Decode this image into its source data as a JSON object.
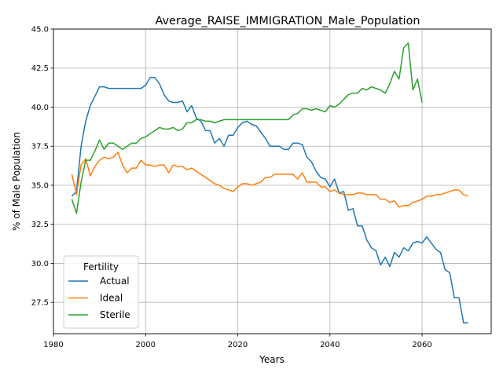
{
  "chart_data": {
    "type": "line",
    "title": "Average_RAISE_IMMIGRATION_Male_Population",
    "xlabel": "Years",
    "ylabel": "% of Male Population",
    "xlim": [
      1980,
      2075
    ],
    "ylim": [
      25.5,
      45.0
    ],
    "xticks": [
      1980,
      2000,
      2020,
      2040,
      2060
    ],
    "xtick_labels": [
      "1980",
      "2000",
      "2020",
      "2040",
      "2060"
    ],
    "yticks": [
      27.5,
      30.0,
      32.5,
      35.0,
      37.5,
      40.0,
      42.5,
      45.0
    ],
    "ytick_labels": [
      "27.5",
      "30.0",
      "32.5",
      "35.0",
      "37.5",
      "40.0",
      "42.5",
      "45.0"
    ],
    "grid": true,
    "legend": {
      "title": "Fertility",
      "placement": "lower-left"
    },
    "series": [
      {
        "name": "Actual",
        "color": "#1f77b4",
        "x": [
          1984,
          1985,
          1986,
          1987,
          1988,
          1989,
          1990,
          1991,
          1992,
          1993,
          1994,
          1995,
          1996,
          1997,
          1998,
          1999,
          2000,
          2001,
          2002,
          2003,
          2004,
          2005,
          2006,
          2007,
          2008,
          2009,
          2010,
          2011,
          2012,
          2013,
          2014,
          2015,
          2016,
          2017,
          2018,
          2019,
          2020,
          2021,
          2022,
          2023,
          2024,
          2025,
          2026,
          2027,
          2028,
          2029,
          2030,
          2031,
          2032,
          2033,
          2034,
          2035,
          2036,
          2037,
          2038,
          2039,
          2040,
          2041,
          2042,
          2043,
          2044,
          2045,
          2046,
          2047,
          2048,
          2049,
          2050,
          2051,
          2052,
          2053,
          2054,
          2055,
          2056,
          2057,
          2058,
          2059,
          2060,
          2061,
          2062,
          2063,
          2064,
          2065,
          2066,
          2067,
          2068,
          2069,
          2070
        ],
        "y": [
          34.3,
          34.6,
          37.5,
          39.1,
          40.1,
          40.7,
          41.3,
          41.3,
          41.2,
          41.2,
          41.2,
          41.2,
          41.2,
          41.2,
          41.2,
          41.2,
          41.4,
          41.9,
          41.9,
          41.5,
          40.8,
          40.4,
          40.3,
          40.3,
          40.4,
          39.7,
          40.1,
          39.3,
          39.1,
          38.5,
          38.5,
          37.7,
          38.0,
          37.5,
          38.2,
          38.2,
          38.7,
          39.0,
          39.1,
          38.9,
          38.8,
          38.4,
          38.0,
          37.5,
          37.5,
          37.5,
          37.3,
          37.3,
          37.7,
          37.7,
          37.6,
          36.8,
          36.5,
          35.9,
          35.5,
          35.4,
          34.9,
          35.4,
          34.5,
          34.6,
          33.4,
          33.5,
          32.4,
          32.4,
          31.5,
          31.0,
          30.8,
          29.9,
          30.4,
          29.8,
          30.7,
          30.4,
          31.0,
          30.8,
          31.3,
          31.4,
          31.3,
          31.7,
          31.3,
          30.9,
          30.7,
          29.6,
          29.4,
          27.8,
          27.8,
          26.2,
          26.2
        ]
      },
      {
        "name": "Ideal",
        "color": "#ff7f0e",
        "x": [
          1984,
          1985,
          1986,
          1987,
          1988,
          1989,
          1990,
          1991,
          1992,
          1993,
          1994,
          1995,
          1996,
          1997,
          1998,
          1999,
          2000,
          2001,
          2002,
          2003,
          2004,
          2005,
          2006,
          2007,
          2008,
          2009,
          2010,
          2011,
          2012,
          2013,
          2014,
          2015,
          2016,
          2017,
          2018,
          2019,
          2020,
          2021,
          2022,
          2023,
          2024,
          2025,
          2026,
          2027,
          2028,
          2029,
          2030,
          2031,
          2032,
          2033,
          2034,
          2035,
          2036,
          2037,
          2038,
          2039,
          2040,
          2041,
          2042,
          2043,
          2044,
          2045,
          2046,
          2047,
          2048,
          2049,
          2050,
          2051,
          2052,
          2053,
          2054,
          2055,
          2056,
          2057,
          2058,
          2059,
          2060,
          2061,
          2062,
          2063,
          2064,
          2065,
          2066,
          2067,
          2068,
          2069,
          2070
        ],
        "y": [
          35.7,
          34.4,
          36.3,
          36.7,
          35.6,
          36.2,
          36.6,
          36.8,
          36.7,
          36.8,
          37.1,
          36.3,
          35.8,
          36.1,
          36.1,
          36.6,
          36.3,
          36.3,
          36.2,
          36.3,
          36.3,
          35.8,
          36.3,
          36.2,
          36.2,
          36.0,
          36.1,
          35.9,
          35.7,
          35.5,
          35.3,
          35.1,
          35.0,
          34.8,
          34.7,
          34.6,
          34.9,
          35.1,
          35.1,
          35.0,
          35.1,
          35.2,
          35.5,
          35.5,
          35.7,
          35.7,
          35.7,
          35.7,
          35.7,
          35.4,
          35.8,
          35.2,
          35.2,
          35.2,
          34.9,
          34.9,
          34.6,
          34.7,
          34.5,
          34.4,
          34.4,
          34.4,
          34.5,
          34.5,
          34.4,
          34.4,
          34.4,
          34.1,
          34.1,
          33.9,
          34.0,
          33.6,
          33.7,
          33.7,
          33.9,
          34.0,
          34.1,
          34.3,
          34.3,
          34.4,
          34.4,
          34.5,
          34.6,
          34.7,
          34.7,
          34.4,
          34.3
        ]
      },
      {
        "name": "Sterile",
        "color": "#2ca02c",
        "x": [
          1984,
          1985,
          1986,
          1987,
          1988,
          1989,
          1990,
          1991,
          1992,
          1993,
          1994,
          1995,
          1996,
          1997,
          1998,
          1999,
          2000,
          2001,
          2002,
          2003,
          2004,
          2005,
          2006,
          2007,
          2008,
          2009,
          2010,
          2011,
          2012,
          2013,
          2014,
          2015,
          2016,
          2017,
          2018,
          2019,
          2020,
          2021,
          2022,
          2023,
          2024,
          2025,
          2026,
          2027,
          2028,
          2029,
          2030,
          2031,
          2032,
          2033,
          2034,
          2035,
          2036,
          2037,
          2038,
          2039,
          2040,
          2041,
          2042,
          2043,
          2044,
          2045,
          2046,
          2047,
          2048,
          2049,
          2050,
          2051,
          2052,
          2053,
          2054,
          2055,
          2056,
          2057,
          2058,
          2059,
          2060
        ],
        "y": [
          34.1,
          33.2,
          35.2,
          36.6,
          36.6,
          37.2,
          37.9,
          37.3,
          37.7,
          37.7,
          37.5,
          37.3,
          37.5,
          37.7,
          37.7,
          38.0,
          38.1,
          38.3,
          38.5,
          38.7,
          38.6,
          38.6,
          38.7,
          38.5,
          38.6,
          39.0,
          39.0,
          39.2,
          39.2,
          39.1,
          39.1,
          39.0,
          39.1,
          39.2,
          39.2,
          39.2,
          39.2,
          39.2,
          39.2,
          39.2,
          39.2,
          39.2,
          39.2,
          39.2,
          39.2,
          39.2,
          39.2,
          39.2,
          39.5,
          39.6,
          39.9,
          39.9,
          39.8,
          39.9,
          39.8,
          39.7,
          40.1,
          40.0,
          40.2,
          40.5,
          40.8,
          40.9,
          40.9,
          41.2,
          41.1,
          41.3,
          41.2,
          41.1,
          40.9,
          41.5,
          42.3,
          41.8,
          43.8,
          44.1,
          41.1,
          41.8,
          40.3
        ]
      }
    ]
  }
}
